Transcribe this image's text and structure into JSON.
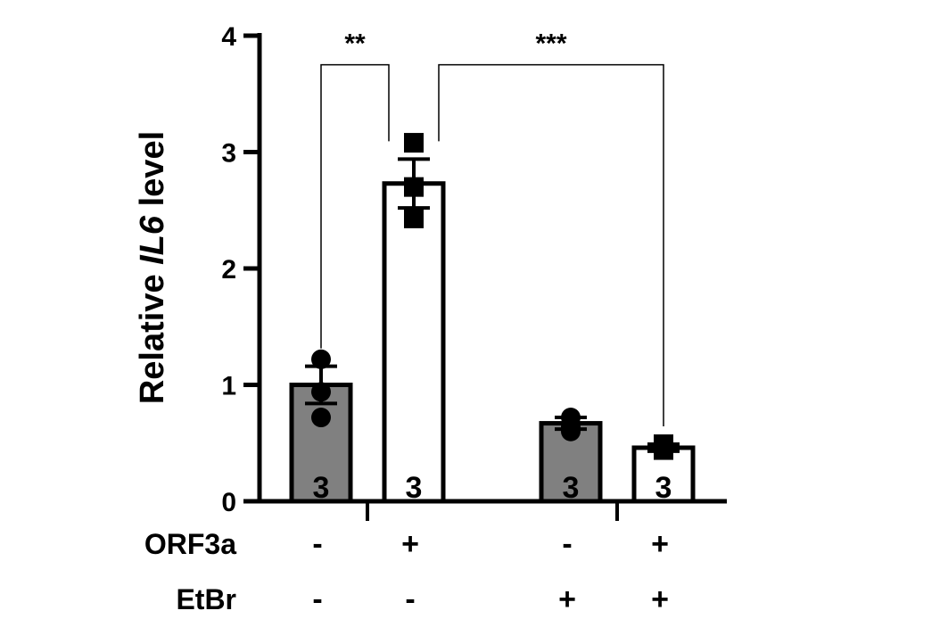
{
  "chart_data": {
    "type": "bar",
    "ylabel_parts": [
      "Relative ",
      "IL6",
      " level"
    ],
    "ylim": [
      0,
      4
    ],
    "yticks": [
      "0",
      "1",
      "2",
      "3",
      "4"
    ],
    "grid": false,
    "colors": {
      "filled": "#808080",
      "open": "#ffffff",
      "stroke": "#000000"
    },
    "bars": [
      {
        "value": 1.0,
        "sem": 0.16,
        "fill": "filled",
        "marker": "circle",
        "points": [
          1.22,
          0.94,
          0.72
        ],
        "n": "3"
      },
      {
        "value": 2.73,
        "sem": 0.21,
        "fill": "open",
        "marker": "square",
        "points": [
          3.08,
          2.7,
          2.43
        ],
        "n": "3"
      },
      {
        "value": 0.67,
        "sem": 0.05,
        "fill": "filled",
        "marker": "circle",
        "points": [
          0.72,
          0.64,
          0.6
        ],
        "n": "3"
      },
      {
        "value": 0.46,
        "sem": 0.03,
        "fill": "open",
        "marker": "square",
        "points": [
          0.49,
          0.46,
          0.44
        ],
        "n": "3"
      }
    ],
    "conditions": [
      {
        "label": "ORF3a",
        "values": [
          "-",
          "+",
          "-",
          "+"
        ]
      },
      {
        "label": "EtBr",
        "values": [
          "-",
          "-",
          "+",
          "+"
        ]
      }
    ],
    "significance": [
      {
        "from": 0,
        "to": 1,
        "label": "**",
        "y": 3.75
      },
      {
        "from": 1,
        "to": 3,
        "label": "***",
        "y": 3.75
      }
    ]
  }
}
